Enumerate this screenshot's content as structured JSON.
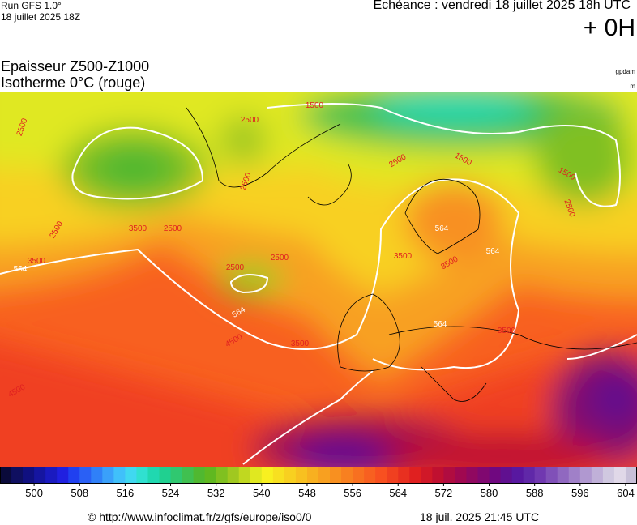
{
  "header": {
    "run": "Run GFS 1.0°",
    "run_date": "18 juillet 2025 18Z",
    "forecast": "Echéance : vendredi 18 juillet 2025 18h UTC",
    "lead": "+ 0H",
    "title": "Epaisseur Z500-Z1000",
    "subtitle": "Isotherme 0°C (rouge)",
    "unit1": "gpdam",
    "unit2": "m"
  },
  "map": {
    "contour_labels": [
      "2500",
      "1500",
      "2500",
      "2500",
      "2500",
      "1500",
      "1500",
      "2500",
      "2500",
      "3500",
      "2500",
      "3500",
      "564",
      "2500",
      "2500",
      "3500",
      "564",
      "3500",
      "564",
      "564",
      "4500",
      "3500",
      "564",
      "3500",
      "4500"
    ]
  },
  "colorbar": {
    "lim": [
      494,
      606
    ],
    "ticks": [
      500,
      508,
      516,
      524,
      532,
      540,
      548,
      556,
      564,
      572,
      580,
      588,
      596,
      604
    ],
    "colors": [
      "#0a0a3a",
      "#0f0f60",
      "#101080",
      "#1515a0",
      "#1a1ac0",
      "#2020e0",
      "#2040f0",
      "#2a60f5",
      "#3080f8",
      "#3aa0fa",
      "#40c0fa",
      "#40d8f0",
      "#30e0d0",
      "#20d8b0",
      "#20d090",
      "#30c870",
      "#40c050",
      "#50b830",
      "#60b820",
      "#80c020",
      "#a0c820",
      "#c0d820",
      "#e0e820",
      "#f8f020",
      "#f8e020",
      "#f8d020",
      "#f8c020",
      "#f8b020",
      "#f8a020",
      "#f89020",
      "#f88020",
      "#f87020",
      "#f86020",
      "#f85020",
      "#f04020",
      "#e83020",
      "#e02020",
      "#d01828",
      "#c01030",
      "#b00c40",
      "#a00850",
      "#900860",
      "#800870",
      "#700880",
      "#601090",
      "#5818a0",
      "#6028a8",
      "#7038b0",
      "#8050b8",
      "#9068c0",
      "#a080c8",
      "#b098d0",
      "#c0b0d8",
      "#d0c8e0",
      "#e0d8e8",
      "#c8c0d8"
    ]
  },
  "footer": {
    "url": "© http://www.infoclimat.fr/z/gfs/europe/iso0/0",
    "generated": "18 juil. 2025 21:45 UTC"
  }
}
